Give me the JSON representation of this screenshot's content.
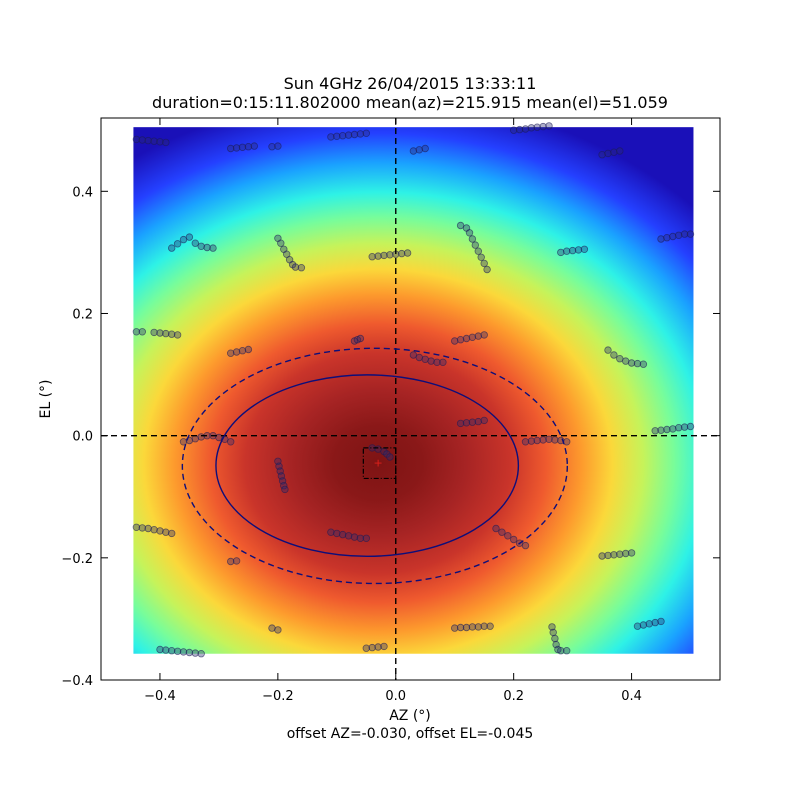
{
  "chart_data": {
    "type": "heatmap",
    "title": "Sun 4GHz 26/04/2015 13:33:11",
    "subtitle": "duration=0:15:11.802000 mean(az)=215.915 mean(el)=51.059",
    "xlabel": "AZ (°)",
    "ylabel": "EL (°)",
    "footer": "offset AZ=-0.030, offset EL=-0.045",
    "xlim": [
      -0.5,
      0.55
    ],
    "ylim": [
      -0.4,
      0.52
    ],
    "xticks": [
      -0.4,
      -0.2,
      0.0,
      0.2,
      0.4
    ],
    "xtick_labels": [
      "−0.4",
      "−0.2",
      "0.0",
      "0.2",
      "0.4"
    ],
    "yticks": [
      -0.4,
      -0.2,
      0.0,
      0.2,
      0.4
    ],
    "ytick_labels": [
      "−0.4",
      "−0.2",
      "0.0",
      "0.2",
      "0.4"
    ],
    "colormap": "jet",
    "heatmap_extent": {
      "az": [
        -0.445,
        0.505
      ],
      "el": [
        -0.357,
        0.505
      ]
    },
    "beam": {
      "center_az": -0.03,
      "center_el": -0.045,
      "width_az": 0.75,
      "width_el": 0.6
    },
    "center": {
      "az": -0.03,
      "el": -0.045
    },
    "contour_inner": {
      "center_az": -0.0485,
      "center_el": -0.049,
      "radius_az": 0.2565,
      "radius_el": 0.1485
    },
    "contour_outer": {
      "center_az": -0.0355,
      "center_el": -0.0495,
      "radius_az": 0.3265,
      "radius_el": 0.1925
    },
    "offset_box": {
      "az": [
        -0.055,
        0.0
      ],
      "el": [
        -0.07,
        -0.02
      ]
    },
    "crosshair": {
      "az": 0.0,
      "el": 0.0
    },
    "scan_points": [
      [
        [
          -0.44,
          0.485
        ],
        [
          -0.43,
          0.484
        ],
        [
          -0.42,
          0.483
        ],
        [
          -0.41,
          0.482
        ],
        [
          -0.4,
          0.481
        ],
        [
          -0.39,
          0.48
        ]
      ],
      [
        [
          -0.28,
          0.47
        ],
        [
          -0.27,
          0.471
        ],
        [
          -0.26,
          0.472
        ],
        [
          -0.25,
          0.473
        ],
        [
          -0.24,
          0.474
        ]
      ],
      [
        [
          -0.21,
          0.473
        ],
        [
          -0.2,
          0.474
        ]
      ],
      [
        [
          -0.11,
          0.489
        ],
        [
          -0.1,
          0.49
        ],
        [
          -0.09,
          0.491
        ],
        [
          -0.08,
          0.492
        ],
        [
          -0.07,
          0.493
        ],
        [
          -0.06,
          0.494
        ],
        [
          -0.05,
          0.495
        ]
      ],
      [
        [
          0.03,
          0.466
        ],
        [
          0.04,
          0.468
        ],
        [
          0.05,
          0.47
        ]
      ],
      [
        [
          0.2,
          0.5
        ],
        [
          0.21,
          0.501
        ],
        [
          0.22,
          0.502
        ],
        [
          0.23,
          0.504
        ],
        [
          0.24,
          0.505
        ],
        [
          0.25,
          0.506
        ],
        [
          0.26,
          0.507
        ]
      ],
      [
        [
          0.35,
          0.46
        ],
        [
          0.36,
          0.462
        ],
        [
          0.37,
          0.464
        ],
        [
          0.38,
          0.466
        ]
      ],
      [
        [
          -0.38,
          0.307
        ],
        [
          -0.37,
          0.314
        ],
        [
          -0.36,
          0.321
        ],
        [
          -0.35,
          0.325
        ],
        [
          -0.34,
          0.315
        ],
        [
          -0.33,
          0.31
        ],
        [
          -0.32,
          0.308
        ],
        [
          -0.31,
          0.307
        ]
      ],
      [
        [
          -0.2,
          0.323
        ],
        [
          -0.195,
          0.315
        ],
        [
          -0.19,
          0.305
        ],
        [
          -0.185,
          0.297
        ],
        [
          -0.18,
          0.288
        ],
        [
          -0.175,
          0.28
        ],
        [
          -0.17,
          0.276
        ],
        [
          -0.16,
          0.275
        ]
      ],
      [
        [
          -0.04,
          0.293
        ],
        [
          -0.03,
          0.294
        ],
        [
          -0.02,
          0.295
        ],
        [
          -0.01,
          0.296
        ],
        [
          0.0,
          0.297
        ],
        [
          0.01,
          0.298
        ],
        [
          0.02,
          0.299
        ]
      ],
      [
        [
          0.11,
          0.344
        ],
        [
          0.12,
          0.34
        ],
        [
          0.125,
          0.332
        ],
        [
          0.13,
          0.322
        ],
        [
          0.135,
          0.312
        ],
        [
          0.14,
          0.302
        ],
        [
          0.145,
          0.292
        ],
        [
          0.15,
          0.282
        ],
        [
          0.155,
          0.272
        ]
      ],
      [
        [
          0.28,
          0.3
        ],
        [
          0.29,
          0.302
        ],
        [
          0.3,
          0.303
        ],
        [
          0.31,
          0.304
        ],
        [
          0.32,
          0.305
        ]
      ],
      [
        [
          0.45,
          0.322
        ],
        [
          0.46,
          0.324
        ],
        [
          0.47,
          0.326
        ],
        [
          0.48,
          0.328
        ],
        [
          0.49,
          0.33
        ],
        [
          0.5,
          0.33
        ]
      ],
      [
        [
          -0.44,
          0.17
        ],
        [
          -0.43,
          0.17
        ],
        [
          -0.41,
          0.169
        ],
        [
          -0.4,
          0.168
        ],
        [
          -0.39,
          0.167
        ],
        [
          -0.38,
          0.166
        ],
        [
          -0.37,
          0.165
        ]
      ],
      [
        [
          -0.28,
          0.135
        ],
        [
          -0.27,
          0.137
        ],
        [
          -0.26,
          0.139
        ],
        [
          -0.25,
          0.141
        ]
      ],
      [
        [
          -0.07,
          0.155
        ],
        [
          -0.065,
          0.157
        ],
        [
          -0.06,
          0.159
        ]
      ],
      [
        [
          0.1,
          0.155
        ],
        [
          0.11,
          0.157
        ],
        [
          0.12,
          0.159
        ],
        [
          0.13,
          0.161
        ],
        [
          0.14,
          0.163
        ],
        [
          0.15,
          0.165
        ]
      ],
      [
        [
          0.36,
          0.14
        ],
        [
          0.37,
          0.132
        ],
        [
          0.38,
          0.126
        ],
        [
          0.39,
          0.122
        ],
        [
          0.4,
          0.119
        ],
        [
          0.41,
          0.118
        ],
        [
          0.42,
          0.117
        ]
      ],
      [
        [
          0.03,
          0.132
        ],
        [
          0.04,
          0.128
        ],
        [
          0.05,
          0.125
        ],
        [
          0.06,
          0.122
        ],
        [
          0.07,
          0.12
        ],
        [
          0.08,
          0.12
        ]
      ],
      [
        [
          -0.36,
          -0.01
        ],
        [
          -0.35,
          -0.008
        ],
        [
          -0.34,
          -0.005
        ],
        [
          -0.33,
          -0.002
        ],
        [
          -0.32,
          0.0
        ],
        [
          -0.31,
          0.0
        ],
        [
          -0.3,
          -0.003
        ],
        [
          -0.29,
          -0.006
        ],
        [
          -0.28,
          -0.01
        ]
      ],
      [
        [
          0.11,
          0.02
        ],
        [
          0.12,
          0.021
        ],
        [
          0.13,
          0.022
        ],
        [
          0.14,
          0.023
        ],
        [
          0.15,
          0.025
        ]
      ],
      [
        [
          0.22,
          -0.01
        ],
        [
          0.23,
          -0.009
        ],
        [
          0.24,
          -0.008
        ],
        [
          0.25,
          -0.007
        ],
        [
          0.26,
          -0.006
        ],
        [
          0.27,
          -0.007
        ],
        [
          0.28,
          -0.008
        ],
        [
          0.29,
          -0.01
        ]
      ],
      [
        [
          0.44,
          0.008
        ],
        [
          0.45,
          0.009
        ],
        [
          0.46,
          0.01
        ],
        [
          0.47,
          0.011
        ],
        [
          0.48,
          0.013
        ],
        [
          0.49,
          0.014
        ],
        [
          0.5,
          0.015
        ]
      ],
      [
        [
          -0.2,
          -0.042
        ],
        [
          -0.198,
          -0.05
        ],
        [
          -0.196,
          -0.058
        ],
        [
          -0.194,
          -0.066
        ],
        [
          -0.192,
          -0.074
        ],
        [
          -0.19,
          -0.082
        ],
        [
          -0.188,
          -0.088
        ]
      ],
      [
        [
          -0.04,
          -0.02
        ],
        [
          -0.03,
          -0.022
        ],
        [
          -0.02,
          -0.026
        ],
        [
          -0.015,
          -0.03
        ],
        [
          -0.01,
          -0.035
        ]
      ],
      [
        [
          -0.44,
          -0.15
        ],
        [
          -0.43,
          -0.151
        ],
        [
          -0.42,
          -0.152
        ],
        [
          -0.41,
          -0.154
        ],
        [
          -0.4,
          -0.156
        ],
        [
          -0.39,
          -0.158
        ],
        [
          -0.38,
          -0.16
        ]
      ],
      [
        [
          -0.11,
          -0.158
        ],
        [
          -0.1,
          -0.16
        ],
        [
          -0.09,
          -0.162
        ],
        [
          -0.08,
          -0.164
        ],
        [
          -0.07,
          -0.166
        ],
        [
          -0.06,
          -0.168
        ],
        [
          -0.05,
          -0.168
        ]
      ],
      [
        [
          0.17,
          -0.152
        ],
        [
          0.18,
          -0.158
        ],
        [
          0.19,
          -0.164
        ],
        [
          0.2,
          -0.17
        ],
        [
          0.21,
          -0.176
        ],
        [
          0.22,
          -0.18
        ]
      ],
      [
        [
          0.35,
          -0.197
        ],
        [
          0.36,
          -0.196
        ],
        [
          0.37,
          -0.195
        ],
        [
          0.38,
          -0.194
        ],
        [
          0.39,
          -0.193
        ],
        [
          0.4,
          -0.192
        ]
      ],
      [
        [
          -0.28,
          -0.206
        ],
        [
          -0.27,
          -0.205
        ]
      ],
      [
        [
          -0.21,
          -0.315
        ],
        [
          -0.2,
          -0.318
        ]
      ],
      [
        [
          -0.4,
          -0.35
        ],
        [
          -0.39,
          -0.351
        ],
        [
          -0.38,
          -0.352
        ],
        [
          -0.37,
          -0.353
        ],
        [
          -0.36,
          -0.354
        ],
        [
          -0.35,
          -0.355
        ],
        [
          -0.34,
          -0.356
        ],
        [
          -0.33,
          -0.357
        ]
      ],
      [
        [
          -0.05,
          -0.348
        ],
        [
          -0.04,
          -0.347
        ],
        [
          -0.03,
          -0.346
        ],
        [
          -0.02,
          -0.345
        ]
      ],
      [
        [
          0.1,
          -0.315
        ],
        [
          0.11,
          -0.314
        ],
        [
          0.12,
          -0.314
        ],
        [
          0.13,
          -0.313
        ],
        [
          0.14,
          -0.313
        ],
        [
          0.15,
          -0.312
        ],
        [
          0.16,
          -0.312
        ]
      ],
      [
        [
          0.265,
          -0.313
        ],
        [
          0.267,
          -0.322
        ],
        [
          0.27,
          -0.332
        ],
        [
          0.272,
          -0.342
        ],
        [
          0.275,
          -0.35
        ],
        [
          0.28,
          -0.352
        ],
        [
          0.29,
          -0.352
        ]
      ],
      [
        [
          0.41,
          -0.312
        ],
        [
          0.42,
          -0.31
        ],
        [
          0.43,
          -0.308
        ],
        [
          0.44,
          -0.306
        ],
        [
          0.45,
          -0.304
        ]
      ]
    ]
  }
}
